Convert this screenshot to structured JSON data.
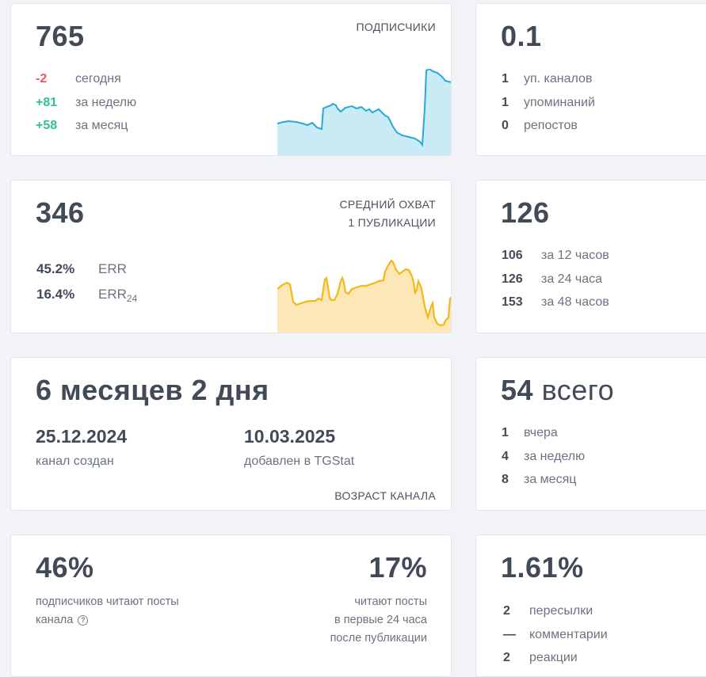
{
  "subscribers": {
    "value": "765",
    "caption": "ПОДПИСЧИКИ",
    "rows": [
      {
        "value": "-2",
        "label": "сегодня"
      },
      {
        "value": "+81",
        "label": "за неделю"
      },
      {
        "value": "+58",
        "label": "за месяц"
      }
    ]
  },
  "citation": {
    "value": "0.1",
    "rows": [
      {
        "value": "1",
        "label": "уп. каналов"
      },
      {
        "value": "1",
        "label": "упоминаний"
      },
      {
        "value": "0",
        "label": "репостов"
      }
    ]
  },
  "reach": {
    "value": "346",
    "caption_line1": "СРЕДНИЙ ОХВАТ",
    "caption_line2": "1 ПУБЛИКАЦИИ",
    "err_value": "45.2%",
    "err_label": "ERR",
    "err24_value": "16.4%",
    "err24_label": "ERR",
    "err24_sub": "24"
  },
  "views": {
    "value": "126",
    "rows": [
      {
        "value": "106",
        "label": "за 12 часов"
      },
      {
        "value": "126",
        "label": "за 24 часа"
      },
      {
        "value": "153",
        "label": "за 48 часов"
      }
    ]
  },
  "age": {
    "value": "6 месяцев 2 дня",
    "created_date": "25.12.2024",
    "created_label": "канал создан",
    "added_date": "10.03.2025",
    "added_label": "добавлен в TGStat",
    "caption": "ВОЗРАСТ КАНАЛА"
  },
  "posts": {
    "value_bold": "54",
    "value_suffix": "всего",
    "rows": [
      {
        "value": "1",
        "label": "вчера"
      },
      {
        "value": "4",
        "label": "за неделю"
      },
      {
        "value": "8",
        "label": "за месяц"
      }
    ]
  },
  "readers": {
    "value": "46%",
    "label_line1": "подписчиков читают посты",
    "label_line2": "канала",
    "help_icon": "question-circle-icon",
    "value24": "17%",
    "label24_line1": "читают посты",
    "label24_line2": "в первые 24 часа",
    "label24_line3": "после публикации"
  },
  "engagement": {
    "value": "1.61%",
    "rows": [
      {
        "value": "2",
        "label": "пересылки"
      },
      {
        "value": "—",
        "label": "комментарии"
      },
      {
        "value": "2",
        "label": "реакции"
      }
    ]
  },
  "colors": {
    "subscribers_line": "#29a9d6",
    "subscribers_fill": "#c9ebf6",
    "reach_line": "#f3b81a",
    "reach_fill": "#fde7b6",
    "negative": "#e8585e",
    "positive": "#35c28a"
  }
}
